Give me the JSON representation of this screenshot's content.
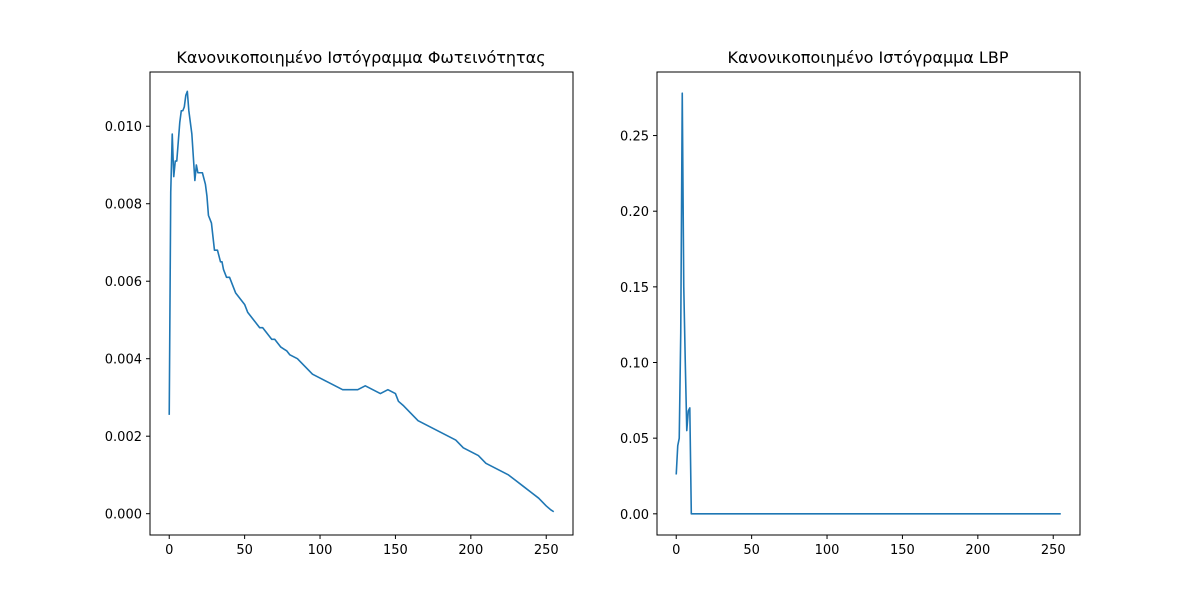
{
  "chart_data": [
    {
      "type": "line",
      "title": "Κανονικοποιημένο Ιστόγραμμα Φωτεινότητας",
      "xlabel": "",
      "ylabel": "",
      "xlim": [
        -12.75,
        267.75
      ],
      "ylim": [
        -0.00055,
        0.0114
      ],
      "xticks": [
        0,
        50,
        100,
        150,
        200,
        250
      ],
      "yticks": [
        0.0,
        0.002,
        0.004,
        0.006,
        0.008,
        0.01
      ],
      "ytick_labels": [
        "0.000",
        "0.002",
        "0.004",
        "0.006",
        "0.008",
        "0.010"
      ],
      "grid": false,
      "color": "#1f77b4",
      "series": [
        {
          "x": [
            0,
            1,
            2,
            3,
            4,
            5,
            6,
            7,
            8,
            9,
            10,
            11,
            12,
            13,
            14,
            15,
            16,
            17,
            18,
            19,
            20,
            22,
            24,
            25,
            26,
            28,
            30,
            32,
            34,
            35,
            36,
            38,
            40,
            42,
            44,
            46,
            48,
            50,
            52,
            54,
            56,
            58,
            60,
            62,
            64,
            66,
            68,
            70,
            72,
            74,
            76,
            78,
            80,
            85,
            90,
            95,
            100,
            105,
            110,
            115,
            120,
            125,
            130,
            135,
            140,
            145,
            150,
            152,
            155,
            160,
            165,
            170,
            175,
            180,
            185,
            190,
            195,
            200,
            205,
            210,
            215,
            220,
            225,
            230,
            235,
            240,
            245,
            250,
            253,
            255
          ],
          "y": [
            0.00255,
            0.0083,
            0.0098,
            0.0087,
            0.0091,
            0.0091,
            0.0096,
            0.0101,
            0.0104,
            0.0104,
            0.0105,
            0.0108,
            0.0109,
            0.0104,
            0.0101,
            0.0098,
            0.0092,
            0.0086,
            0.009,
            0.0088,
            0.0088,
            0.0088,
            0.0085,
            0.0082,
            0.0077,
            0.0075,
            0.0068,
            0.0068,
            0.0065,
            0.0065,
            0.0063,
            0.0061,
            0.0061,
            0.0059,
            0.0057,
            0.0056,
            0.0055,
            0.0054,
            0.0052,
            0.0051,
            0.005,
            0.0049,
            0.0048,
            0.0048,
            0.0047,
            0.0046,
            0.0045,
            0.0045,
            0.0044,
            0.0043,
            0.00425,
            0.0042,
            0.0041,
            0.004,
            0.0038,
            0.0036,
            0.0035,
            0.0034,
            0.0033,
            0.0032,
            0.0032,
            0.0032,
            0.0033,
            0.0032,
            0.0031,
            0.0032,
            0.0031,
            0.0029,
            0.0028,
            0.0026,
            0.0024,
            0.0023,
            0.0022,
            0.0021,
            0.002,
            0.0019,
            0.0017,
            0.0016,
            0.0015,
            0.0013,
            0.0012,
            0.0011,
            0.001,
            0.00085,
            0.0007,
            0.00055,
            0.0004,
            0.0002,
            0.0001,
            5e-05
          ]
        }
      ]
    },
    {
      "type": "line",
      "title": "Κανονικοποιημένο Ιστόγραμμα LBP",
      "xlabel": "",
      "ylabel": "",
      "xlim": [
        -12.75,
        267.75
      ],
      "ylim": [
        -0.014,
        0.292
      ],
      "xticks": [
        0,
        50,
        100,
        150,
        200,
        250
      ],
      "yticks": [
        0.0,
        0.05,
        0.1,
        0.15,
        0.2,
        0.25
      ],
      "ytick_labels": [
        "0.00",
        "0.05",
        "0.10",
        "0.15",
        "0.20",
        "0.25"
      ],
      "grid": false,
      "color": "#1f77b4",
      "series": [
        {
          "x": [
            0,
            1,
            2,
            3,
            4,
            5,
            6,
            7,
            8,
            9,
            10,
            12,
            20,
            50,
            100,
            150,
            200,
            255
          ],
          "y": [
            0.026,
            0.045,
            0.05,
            0.12,
            0.278,
            0.15,
            0.1,
            0.055,
            0.068,
            0.07,
            0.0,
            0.0,
            0.0,
            0.0,
            0.0,
            0.0,
            0.0,
            0.0
          ]
        }
      ]
    }
  ]
}
